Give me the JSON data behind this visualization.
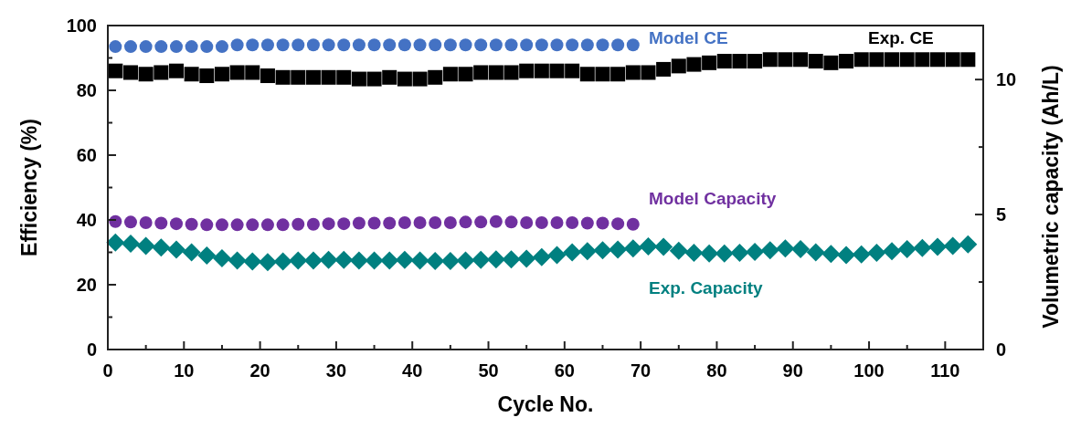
{
  "chart_data": {
    "type": "scatter",
    "xlabel": "Cycle No.",
    "ylabel": "Efficiency (%)",
    "y2label": "Volumetric capacity (Ah/L)",
    "xlim": [
      0,
      115
    ],
    "xticks": [
      0,
      {
        "value": 5,
        "label": null
      },
      10,
      {
        "value": 15,
        "label": null
      },
      20,
      {
        "value": 25,
        "label": null
      },
      30,
      {
        "value": 35,
        "label": null
      },
      40,
      {
        "value": 45,
        "label": null
      },
      50,
      {
        "value": 55,
        "label": null
      },
      60,
      {
        "value": 65,
        "label": null
      },
      70,
      {
        "value": 75,
        "label": null
      },
      80,
      {
        "value": 85,
        "label": null
      },
      90,
      {
        "value": 95,
        "label": null
      },
      100,
      {
        "value": 105,
        "label": null
      },
      110
    ],
    "ylim": [
      0,
      100
    ],
    "yticks": [
      0,
      {
        "value": 10,
        "label": null
      },
      20,
      {
        "value": 30,
        "label": null
      },
      40,
      {
        "value": 50,
        "label": null
      },
      60,
      {
        "value": 70,
        "label": null
      },
      80,
      {
        "value": 90,
        "label": null
      },
      100
    ],
    "y2lim": [
      0,
      12
    ],
    "y2ticks": [
      0,
      {
        "value": 2.5,
        "label": null
      },
      5,
      {
        "value": 7.5,
        "label": null
      },
      10
    ],
    "series": [
      {
        "name": "Model CE",
        "color": "#4472c4",
        "marker": "circle",
        "x": [
          1,
          3,
          5,
          7,
          9,
          11,
          13,
          15,
          17,
          19,
          21,
          23,
          25,
          27,
          29,
          31,
          33,
          35,
          37,
          39,
          41,
          43,
          45,
          47,
          49,
          51,
          53,
          55,
          57,
          59,
          61,
          63,
          65,
          67,
          69
        ],
        "values": [
          93.5,
          93.5,
          93.5,
          93.5,
          93.5,
          93.5,
          93.5,
          93.5,
          94,
          94,
          94,
          94,
          94,
          94,
          94,
          94,
          94,
          94,
          94,
          94,
          94,
          94,
          94,
          94,
          94,
          94,
          94,
          94,
          94,
          94,
          94,
          94,
          94,
          94,
          94
        ]
      },
      {
        "name": "Exp. CE",
        "color": "#000000",
        "marker": "square",
        "x": [
          1,
          3,
          5,
          7,
          9,
          11,
          13,
          15,
          17,
          19,
          21,
          23,
          25,
          27,
          29,
          31,
          33,
          35,
          37,
          39,
          41,
          43,
          45,
          47,
          49,
          51,
          53,
          55,
          57,
          59,
          61,
          63,
          65,
          67,
          69,
          71,
          73,
          75,
          77,
          79,
          81,
          83,
          85,
          87,
          89,
          91,
          93,
          95,
          97,
          99,
          101,
          103,
          105,
          107,
          109,
          111,
          113
        ],
        "values": [
          86,
          85.5,
          85,
          85.5,
          86,
          85,
          84.5,
          85,
          85.5,
          85.5,
          84.5,
          84,
          84,
          84,
          84,
          84,
          83.5,
          83.5,
          84,
          83.5,
          83.5,
          84,
          85,
          85,
          85.5,
          85.5,
          85.5,
          86,
          86,
          86,
          86,
          85,
          85,
          85,
          85.5,
          85.5,
          86.5,
          87.5,
          88,
          88.5,
          89,
          89,
          89,
          89.5,
          89.5,
          89.5,
          89,
          88.5,
          89,
          89.5,
          89.5,
          89.5,
          89.5,
          89.5,
          89.5,
          89.5,
          89.5
        ]
      },
      {
        "name": "Model Capacity",
        "color": "#7030a0",
        "marker": "circle",
        "axis": "y2",
        "x": [
          1,
          3,
          5,
          7,
          9,
          11,
          13,
          15,
          17,
          19,
          21,
          23,
          25,
          27,
          29,
          31,
          33,
          35,
          37,
          39,
          41,
          43,
          45,
          47,
          49,
          51,
          53,
          55,
          57,
          59,
          61,
          63,
          65,
          67,
          69
        ],
        "values": [
          4.74,
          4.72,
          4.7,
          4.68,
          4.66,
          4.64,
          4.62,
          4.62,
          4.62,
          4.62,
          4.62,
          4.62,
          4.64,
          4.64,
          4.66,
          4.66,
          4.68,
          4.68,
          4.68,
          4.7,
          4.7,
          4.7,
          4.7,
          4.72,
          4.72,
          4.74,
          4.72,
          4.7,
          4.7,
          4.7,
          4.7,
          4.68,
          4.68,
          4.66,
          4.64
        ]
      },
      {
        "name": "Exp. Capacity",
        "color": "#008080",
        "marker": "diamond",
        "axis": "y2",
        "x": [
          1,
          3,
          5,
          7,
          9,
          11,
          13,
          15,
          17,
          19,
          21,
          23,
          25,
          27,
          29,
          31,
          33,
          35,
          37,
          39,
          41,
          43,
          45,
          47,
          49,
          51,
          53,
          55,
          57,
          59,
          61,
          63,
          65,
          67,
          69,
          71,
          73,
          75,
          77,
          79,
          81,
          83,
          85,
          87,
          89,
          91,
          93,
          95,
          97,
          99,
          101,
          103,
          105,
          107,
          109,
          111,
          113
        ],
        "values": [
          3.96,
          3.92,
          3.84,
          3.78,
          3.7,
          3.6,
          3.48,
          3.38,
          3.3,
          3.26,
          3.24,
          3.26,
          3.3,
          3.3,
          3.32,
          3.32,
          3.3,
          3.3,
          3.3,
          3.32,
          3.3,
          3.28,
          3.28,
          3.3,
          3.32,
          3.34,
          3.34,
          3.36,
          3.42,
          3.5,
          3.6,
          3.64,
          3.68,
          3.7,
          3.74,
          3.82,
          3.8,
          3.66,
          3.58,
          3.56,
          3.56,
          3.58,
          3.62,
          3.68,
          3.74,
          3.72,
          3.6,
          3.54,
          3.5,
          3.52,
          3.58,
          3.64,
          3.72,
          3.76,
          3.8,
          3.84,
          3.9
        ]
      }
    ]
  }
}
